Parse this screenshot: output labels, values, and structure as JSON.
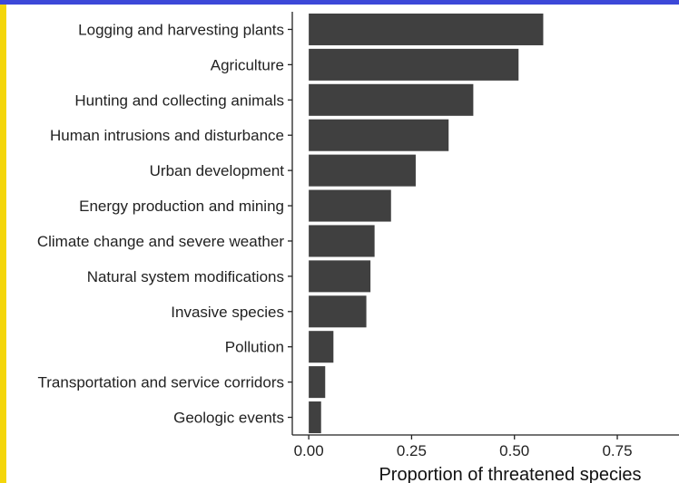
{
  "background": {
    "slide_color": "#f4d60a",
    "band_color": "#3c48d8",
    "card_color": "#ffffff",
    "cut_glyphs": [
      "s",
      "d"
    ]
  },
  "chart_data": {
    "type": "bar",
    "orientation": "horizontal",
    "categories": [
      "Logging and harvesting plants",
      "Agriculture",
      "Hunting and collecting animals",
      "Human intrusions and disturbance",
      "Urban development",
      "Energy production and mining",
      "Climate change and severe weather",
      "Natural system modifications",
      "Invasive species",
      "Pollution",
      "Transportation and service corridors",
      "Geologic events"
    ],
    "values": [
      0.57,
      0.51,
      0.4,
      0.34,
      0.26,
      0.2,
      0.16,
      0.15,
      0.14,
      0.06,
      0.04,
      0.03
    ],
    "xlabel": "Proportion of threatened species",
    "xlim": [
      -0.04,
      0.9
    ],
    "xticks": [
      0,
      0.25,
      0.5,
      0.75
    ],
    "xtick_labels": [
      "0.00",
      "0.25",
      "0.50",
      "0.75"
    ],
    "grid": false,
    "legend": "none",
    "bar_color": "#404040"
  }
}
